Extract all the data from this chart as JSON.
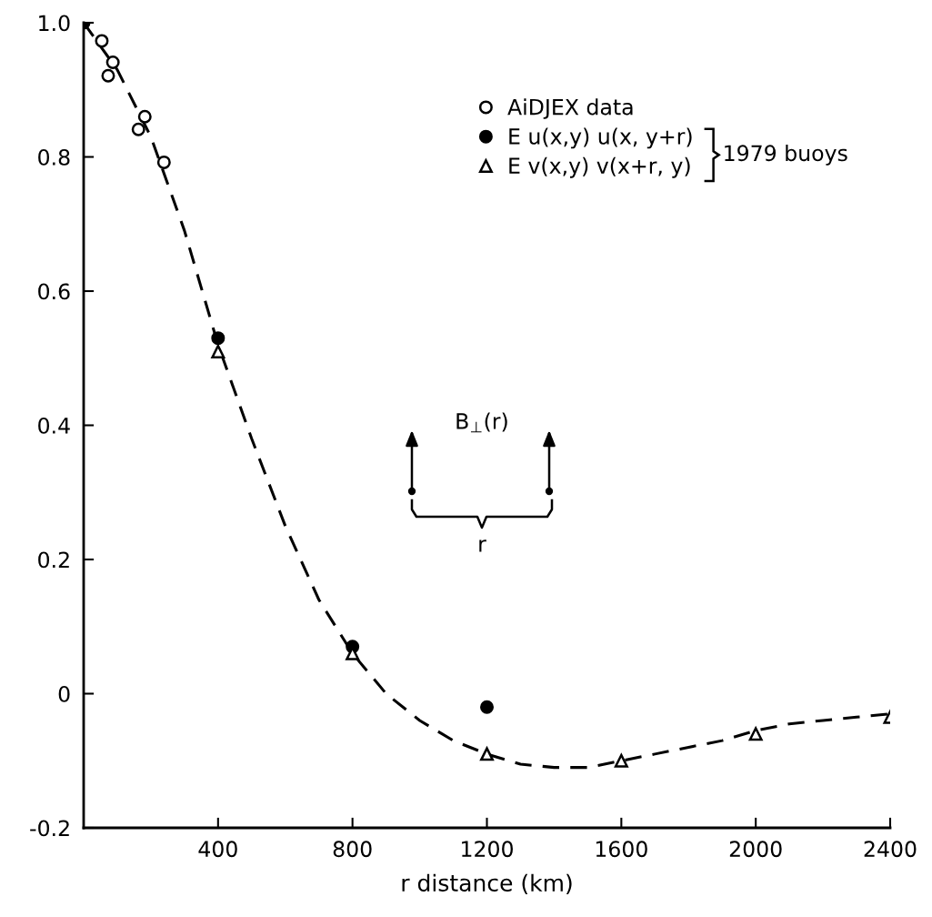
{
  "chart_data": {
    "type": "scatter",
    "xlabel": "r distance (km)",
    "xlim": [
      0,
      2400
    ],
    "ylim": [
      -0.2,
      1.0
    ],
    "xticks": [
      400,
      800,
      1200,
      1600,
      2000,
      2400
    ],
    "yticks": [
      -0.2,
      0,
      0.2,
      0.4,
      0.6,
      0.8,
      {
        "value": 1.0,
        "label": "1.0"
      }
    ],
    "grid": false,
    "legend": "top right",
    "series": [
      {
        "name": "AiDJEX data",
        "color": "#ffffff",
        "marker": "circle",
        "x": [
          54,
          73,
          87,
          163,
          182,
          239
        ],
        "values": [
          0.973,
          0.921,
          0.941,
          0.841,
          0.86,
          0.792
        ]
      },
      {
        "name": "E u(x,y) u(x, y+r)",
        "color": "#000000",
        "marker": "circle",
        "x": [
          0,
          400,
          800,
          1200
        ],
        "values": [
          1.0,
          0.53,
          0.07,
          -0.02
        ]
      },
      {
        "name": "E v(x,y) v(x+r, y)",
        "color": "#ffffff",
        "marker": "triangle",
        "x": [
          400,
          800,
          1200,
          1600,
          2000,
          2400
        ],
        "values": [
          0.51,
          0.06,
          -0.09,
          -0.1,
          -0.06,
          -0.035
        ]
      },
      {
        "type": "line",
        "line_style": "dashed",
        "marker": "none",
        "color": "#000000",
        "x": [
          0,
          100,
          200,
          300,
          400,
          500,
          600,
          700,
          800,
          900,
          1000,
          1100,
          1200,
          1300,
          1400,
          1500,
          1600,
          1700,
          1800,
          1900,
          2000,
          2100,
          2200,
          2300,
          2400
        ],
        "values": [
          1.0,
          0.93,
          0.83,
          0.69,
          0.52,
          0.38,
          0.25,
          0.14,
          0.06,
          0.0,
          -0.04,
          -0.07,
          -0.09,
          -0.105,
          -0.11,
          -0.11,
          -0.1,
          -0.09,
          -0.08,
          -0.07,
          -0.055,
          -0.045,
          -0.04,
          -0.035,
          -0.03
        ]
      }
    ],
    "annotations": [
      "1979 buoys",
      "B$_{⊥}$(r)",
      "r"
    ]
  }
}
